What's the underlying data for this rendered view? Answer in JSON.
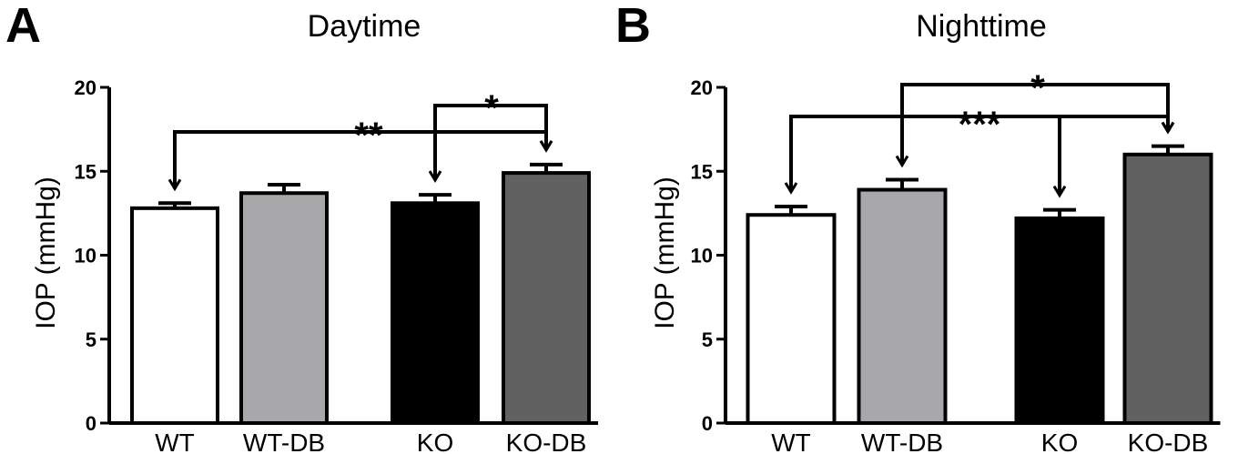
{
  "chart_data": [
    {
      "type": "bar",
      "panel_label": "A",
      "title": "Daytime",
      "ylabel": "IOP (mmHg)",
      "xlabel": "",
      "ylim": [
        0,
        20
      ],
      "yticks": [
        "0",
        "5",
        "10",
        "15",
        "20"
      ],
      "categories": [
        "WT",
        "WT-DB",
        "KO",
        "KO-DB"
      ],
      "values": [
        12.8,
        13.7,
        13.1,
        14.9
      ],
      "errors": [
        0.3,
        0.5,
        0.5,
        0.5
      ],
      "colors": [
        "#ffffff",
        "#a8a8ab",
        "#000000",
        "#616161"
      ],
      "significance": [
        {
          "from": 0,
          "to": 3,
          "label": "**"
        },
        {
          "from": 2,
          "to": 3,
          "label": "*"
        }
      ]
    },
    {
      "type": "bar",
      "panel_label": "B",
      "title": "Nighttime",
      "ylabel": "IOP (mmHg)",
      "xlabel": "",
      "ylim": [
        0,
        20
      ],
      "yticks": [
        "0",
        "5",
        "10",
        "15",
        "20"
      ],
      "categories": [
        "WT",
        "WT-DB",
        "KO",
        "KO-DB"
      ],
      "values": [
        12.4,
        13.9,
        12.2,
        16.0
      ],
      "errors": [
        0.5,
        0.6,
        0.5,
        0.5
      ],
      "colors": [
        "#ffffff",
        "#a8a8ab",
        "#000000",
        "#616161"
      ],
      "significance": [
        {
          "from": 1,
          "to": 3,
          "label": "*"
        },
        {
          "from": 0,
          "to": 3,
          "label": "***",
          "includes": [
            2
          ]
        }
      ]
    }
  ]
}
